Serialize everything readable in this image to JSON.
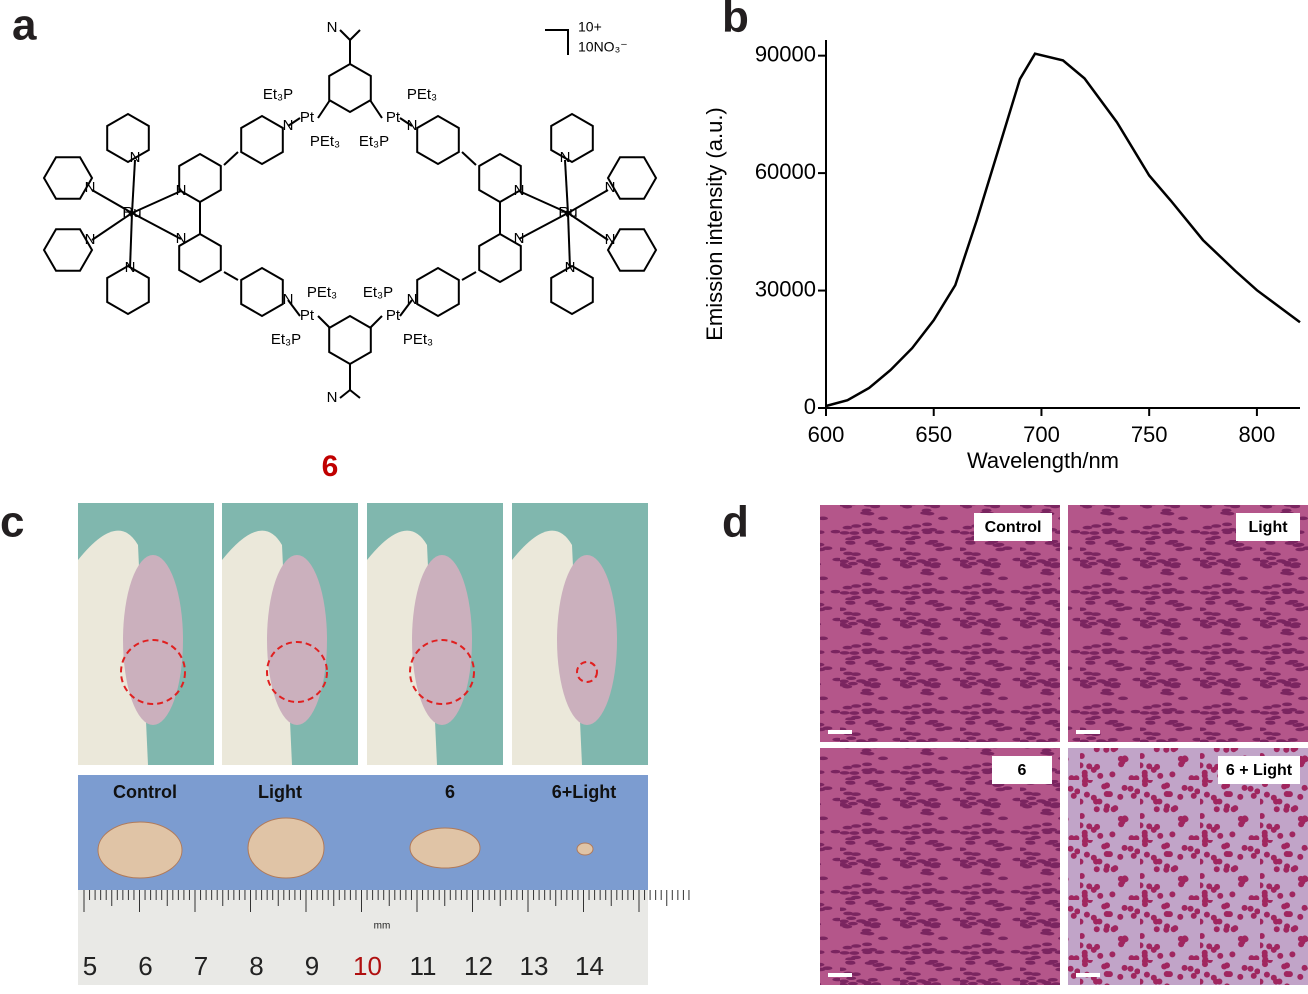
{
  "panel_labels": [
    "a",
    "b",
    "c",
    "d"
  ],
  "structure": {
    "metals": [
      "Ru",
      "Ru",
      "Pt",
      "Pt",
      "Pt",
      "Pt"
    ],
    "ligands": [
      "Et₃P",
      "PEt₃",
      "PEt₃",
      "Et₃P",
      "PEt₃",
      "Et₃P",
      "Et₃P",
      "PEt₃"
    ],
    "nitrogens": [
      "N",
      "N",
      "N",
      "N",
      "N",
      "N",
      "N",
      "N",
      "N",
      "N",
      "N",
      "N",
      "N",
      "N",
      "N",
      "N",
      "N",
      "N"
    ],
    "charge": "10+",
    "counterion": "10NO₃⁻",
    "compound": "6"
  },
  "chart_data": {
    "type": "line",
    "xlabel": "Wavelength/nm",
    "ylabel": "Emission intensity (a.u.)",
    "x": [
      600,
      610,
      620,
      630,
      640,
      650,
      660,
      670,
      680,
      690,
      697,
      710,
      720,
      735,
      750,
      760,
      775,
      790,
      800,
      820
    ],
    "values": [
      500,
      2000,
      5100,
      9700,
      15300,
      22400,
      31400,
      48000,
      66000,
      84000,
      90500,
      88800,
      84200,
      73000,
      59400,
      53000,
      42900,
      35000,
      30100,
      21900
    ],
    "color": "#000000",
    "xlim": [
      600,
      820
    ],
    "ylim": [
      0,
      94000
    ],
    "xticks": [
      600,
      650,
      700,
      750,
      800
    ],
    "yticks": [
      0,
      30000,
      60000,
      90000
    ]
  },
  "tumor_photo": {
    "groups": [
      "Control",
      "Light",
      "6",
      "6+Light"
    ],
    "ruler": [
      "5",
      "6",
      "7",
      "8",
      "9",
      "10",
      "11",
      "12",
      "13",
      "14"
    ],
    "unit": "mm"
  },
  "histology": {
    "labels": [
      "Control",
      "Light",
      "6",
      "6 + Light"
    ]
  }
}
